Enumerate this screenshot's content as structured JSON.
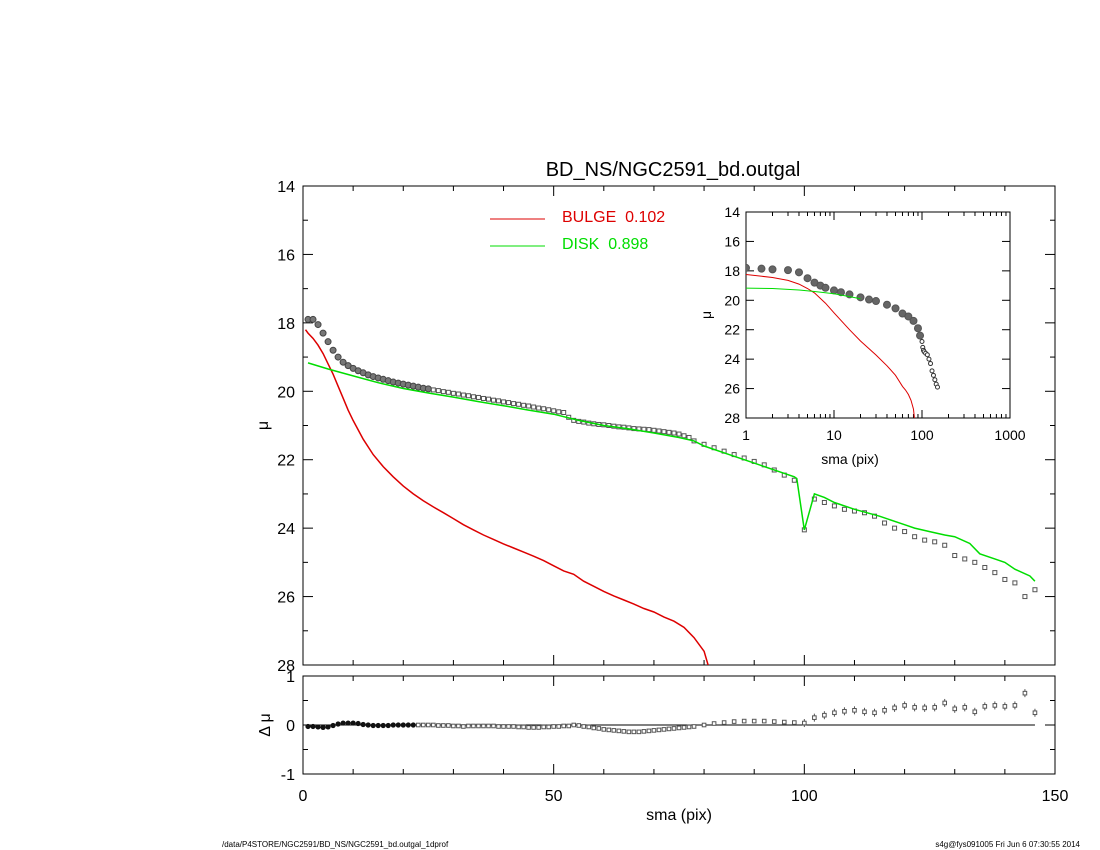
{
  "title": "BD_NS/NGC2591_bd.outgal",
  "footer": {
    "left": "/data/P4STORE/NGC2591/BD_NS/NGC2591_bd.outgal_1dprof",
    "right": "s4g@fys091005  Fri Jun  6 07:30:55 2014"
  },
  "colors": {
    "data": "#555555",
    "bulge": "#dd0000",
    "disk": "#00dd00",
    "axes": "#000000"
  },
  "chart_data": [
    {
      "name": "main-profile",
      "type": "line",
      "title": "BD_NS/NGC2591_bd.outgal",
      "xlabel": "",
      "ylabel": "μ",
      "xlim": [
        0,
        150
      ],
      "ylim": [
        28,
        14
      ],
      "y_inverted": true,
      "xticks": [
        0,
        50,
        100,
        150
      ],
      "yticks": [
        14,
        16,
        18,
        20,
        22,
        24,
        26,
        28
      ],
      "legend": {
        "placement": "top-center",
        "entries": [
          {
            "label": "BULGE  0.102",
            "color": "#dd0000"
          },
          {
            "label": "DISK  0.898",
            "color": "#00dd00"
          }
        ]
      },
      "series": [
        {
          "name": "data",
          "style": "markers",
          "x": [
            1,
            2,
            3,
            4,
            5,
            6,
            7,
            8,
            9,
            10,
            11,
            12,
            13,
            14,
            15,
            16,
            17,
            18,
            19,
            20,
            21,
            22,
            23,
            24,
            25,
            26,
            27,
            28,
            29,
            30,
            31,
            32,
            33,
            34,
            35,
            36,
            37,
            38,
            39,
            40,
            41,
            42,
            43,
            44,
            45,
            46,
            47,
            48,
            49,
            50,
            51,
            52,
            53,
            54,
            55,
            56,
            57,
            58,
            59,
            60,
            61,
            62,
            63,
            64,
            65,
            66,
            67,
            68,
            69,
            70,
            71,
            72,
            73,
            74,
            75,
            76,
            77,
            78,
            80,
            82,
            84,
            86,
            88,
            90,
            92,
            94,
            96,
            98,
            100,
            102,
            104,
            106,
            108,
            110,
            112,
            114,
            116,
            118,
            120,
            122,
            124,
            126,
            128,
            130,
            132,
            134,
            136,
            138,
            140,
            142,
            144,
            146
          ],
          "y": [
            17.9,
            17.9,
            18.05,
            18.3,
            18.55,
            18.8,
            19.0,
            19.15,
            19.25,
            19.33,
            19.4,
            19.46,
            19.52,
            19.57,
            19.61,
            19.65,
            19.69,
            19.73,
            19.76,
            19.79,
            19.82,
            19.85,
            19.88,
            19.91,
            19.93,
            19.96,
            19.98,
            20.01,
            20.03,
            20.06,
            20.08,
            20.11,
            20.13,
            20.16,
            20.18,
            20.21,
            20.23,
            20.26,
            20.28,
            20.31,
            20.33,
            20.36,
            20.38,
            20.41,
            20.43,
            20.46,
            20.49,
            20.51,
            20.54,
            20.57,
            20.6,
            20.62,
            20.76,
            20.85,
            20.88,
            20.9,
            20.93,
            20.95,
            20.97,
            20.98,
            21.0,
            21.02,
            21.04,
            21.05,
            21.07,
            21.09,
            21.1,
            21.11,
            21.12,
            21.14,
            21.16,
            21.18,
            21.2,
            21.22,
            21.25,
            21.3,
            21.35,
            21.45,
            21.55,
            21.65,
            21.75,
            21.85,
            21.95,
            22.05,
            22.15,
            22.3,
            22.45,
            22.6,
            24.05,
            23.15,
            23.25,
            23.35,
            23.45,
            23.5,
            23.55,
            23.65,
            23.85,
            24.0,
            24.1,
            24.25,
            24.35,
            24.4,
            24.5,
            24.8,
            24.9,
            25.0,
            25.15,
            25.3,
            25.5,
            25.6,
            26.0,
            25.8
          ]
        },
        {
          "name": "BULGE  0.102",
          "style": "line",
          "color": "#dd0000",
          "x": [
            0.5,
            1,
            2,
            3,
            4,
            5,
            6,
            7,
            8,
            9,
            10,
            12,
            14,
            16,
            18,
            20,
            22,
            24,
            26,
            28,
            30,
            32,
            34,
            36,
            38,
            40,
            42,
            44,
            46,
            48,
            50,
            52,
            54,
            56,
            58,
            60,
            62,
            64,
            66,
            68,
            70,
            72,
            74,
            76,
            78,
            80,
            80.8
          ],
          "y": [
            18.2,
            18.3,
            18.45,
            18.65,
            18.9,
            19.2,
            19.5,
            19.85,
            20.2,
            20.55,
            20.85,
            21.4,
            21.85,
            22.2,
            22.5,
            22.77,
            23.0,
            23.2,
            23.38,
            23.55,
            23.72,
            23.9,
            24.05,
            24.2,
            24.33,
            24.46,
            24.58,
            24.7,
            24.82,
            24.95,
            25.1,
            25.25,
            25.35,
            25.55,
            25.7,
            25.85,
            25.98,
            26.1,
            26.22,
            26.35,
            26.45,
            26.6,
            26.72,
            26.9,
            27.2,
            27.6,
            28.0
          ]
        },
        {
          "name": "DISK  0.898",
          "style": "line",
          "color": "#00dd00",
          "x": [
            1,
            5,
            10,
            15,
            20,
            25,
            30,
            35,
            40,
            45,
            50,
            55,
            60,
            65,
            70,
            75,
            78,
            80,
            85,
            90,
            95,
            98,
            98.5,
            100,
            102,
            104,
            106,
            110,
            115,
            120,
            122,
            125,
            128,
            130,
            133,
            135,
            138,
            140,
            142,
            145,
            146
          ],
          "y": [
            19.17,
            19.35,
            19.55,
            19.75,
            19.92,
            20.05,
            20.17,
            20.3,
            20.42,
            20.55,
            20.67,
            20.85,
            21.0,
            21.1,
            21.22,
            21.35,
            21.45,
            21.6,
            21.85,
            22.1,
            22.35,
            22.5,
            22.55,
            24.05,
            23.0,
            23.1,
            23.25,
            23.45,
            23.65,
            23.9,
            24.0,
            24.1,
            24.2,
            24.25,
            24.45,
            24.75,
            24.9,
            25.0,
            25.2,
            25.4,
            25.55
          ]
        }
      ]
    },
    {
      "name": "inset-logscale",
      "type": "line",
      "xlabel": "sma (pix)",
      "ylabel": "μ",
      "x_scale": "log",
      "xlim": [
        1,
        1000
      ],
      "ylim": [
        28,
        14
      ],
      "y_inverted": true,
      "xticks": [
        1,
        10,
        100,
        1000
      ],
      "yticks": [
        14,
        16,
        18,
        20,
        22,
        24,
        26,
        28
      ],
      "series": [
        {
          "name": "data",
          "style": "markers",
          "x": [
            1,
            1.5,
            2,
            3,
            4,
            5,
            6,
            7,
            8,
            10,
            12,
            15,
            20,
            25,
            30,
            40,
            50,
            60,
            70,
            80,
            90,
            95,
            100,
            102,
            104,
            106,
            110,
            115,
            120,
            125,
            130,
            135,
            140,
            145,
            150
          ],
          "y": [
            17.8,
            17.85,
            17.9,
            17.95,
            18.1,
            18.5,
            18.8,
            19.0,
            19.15,
            19.33,
            19.45,
            19.6,
            19.8,
            19.95,
            20.05,
            20.3,
            20.55,
            20.9,
            21.1,
            21.4,
            21.9,
            22.4,
            22.8,
            23.2,
            23.4,
            23.5,
            23.6,
            23.7,
            24.0,
            24.3,
            24.8,
            25.1,
            25.4,
            25.7,
            25.9
          ]
        },
        {
          "name": "BULGE  0.102",
          "style": "line",
          "color": "#dd0000",
          "x": [
            1,
            2,
            3,
            4,
            5,
            6,
            8,
            10,
            15,
            20,
            30,
            40,
            50,
            60,
            65,
            70,
            75,
            80,
            82
          ],
          "y": [
            18.25,
            18.45,
            18.65,
            18.9,
            19.2,
            19.5,
            20.2,
            20.85,
            22.0,
            22.77,
            23.72,
            24.45,
            25.1,
            25.85,
            26.1,
            26.4,
            26.8,
            27.4,
            28.0
          ]
        },
        {
          "name": "DISK  0.898",
          "style": "line",
          "color": "#00dd00",
          "x": [
            1,
            2,
            4,
            6,
            10,
            15,
            20
          ],
          "y": [
            19.17,
            19.2,
            19.3,
            19.4,
            19.55,
            19.75,
            19.9
          ]
        }
      ]
    },
    {
      "name": "residuals",
      "type": "scatter",
      "xlabel": "sma (pix)",
      "ylabel": "Δ μ",
      "xlim": [
        0,
        150
      ],
      "ylim": [
        -1,
        1
      ],
      "xticks": [
        0,
        50,
        100,
        150
      ],
      "yticks": [
        1,
        0,
        -1
      ],
      "zero_line": true,
      "series": [
        {
          "name": "residual",
          "x": [
            1,
            2,
            3,
            4,
            5,
            6,
            7,
            8,
            9,
            10,
            11,
            12,
            13,
            14,
            15,
            16,
            17,
            18,
            19,
            20,
            21,
            22,
            23,
            24,
            25,
            26,
            27,
            28,
            29,
            30,
            31,
            32,
            33,
            34,
            35,
            36,
            37,
            38,
            39,
            40,
            41,
            42,
            43,
            44,
            45,
            46,
            47,
            48,
            49,
            50,
            51,
            52,
            53,
            54,
            55,
            56,
            57,
            58,
            59,
            60,
            61,
            62,
            63,
            64,
            65,
            66,
            67,
            68,
            69,
            70,
            71,
            72,
            73,
            74,
            75,
            76,
            77,
            78,
            80,
            82,
            84,
            86,
            88,
            90,
            92,
            94,
            96,
            98,
            100,
            102,
            104,
            106,
            108,
            110,
            112,
            114,
            116,
            118,
            120,
            122,
            124,
            126,
            128,
            130,
            132,
            134,
            136,
            138,
            140,
            142,
            144,
            146
          ],
          "y": [
            -0.03,
            -0.03,
            -0.04,
            -0.05,
            -0.04,
            -0.01,
            0.02,
            0.04,
            0.04,
            0.04,
            0.03,
            0.01,
            0.0,
            -0.01,
            -0.01,
            -0.01,
            -0.01,
            0.0,
            0.0,
            0.0,
            0.0,
            0.0,
            0.0,
            0.0,
            0.0,
            0.0,
            -0.01,
            -0.01,
            -0.01,
            -0.02,
            -0.02,
            -0.03,
            -0.02,
            -0.02,
            -0.02,
            -0.02,
            -0.02,
            -0.02,
            -0.03,
            -0.03,
            -0.03,
            -0.03,
            -0.04,
            -0.04,
            -0.05,
            -0.05,
            -0.05,
            -0.04,
            -0.04,
            -0.03,
            -0.03,
            -0.02,
            -0.02,
            0.0,
            -0.01,
            -0.03,
            -0.04,
            -0.06,
            -0.07,
            -0.09,
            -0.1,
            -0.11,
            -0.12,
            -0.13,
            -0.14,
            -0.14,
            -0.14,
            -0.13,
            -0.12,
            -0.11,
            -0.1,
            -0.09,
            -0.08,
            -0.07,
            -0.06,
            -0.05,
            -0.04,
            -0.03,
            0.0,
            0.03,
            0.05,
            0.07,
            0.08,
            0.08,
            0.08,
            0.07,
            0.06,
            0.05,
            0.04,
            0.15,
            0.2,
            0.25,
            0.28,
            0.3,
            0.27,
            0.25,
            0.3,
            0.35,
            0.4,
            0.36,
            0.35,
            0.36,
            0.45,
            0.33,
            0.36,
            0.27,
            0.38,
            0.4,
            0.38,
            0.4,
            0.65,
            0.25
          ]
        }
      ]
    }
  ]
}
